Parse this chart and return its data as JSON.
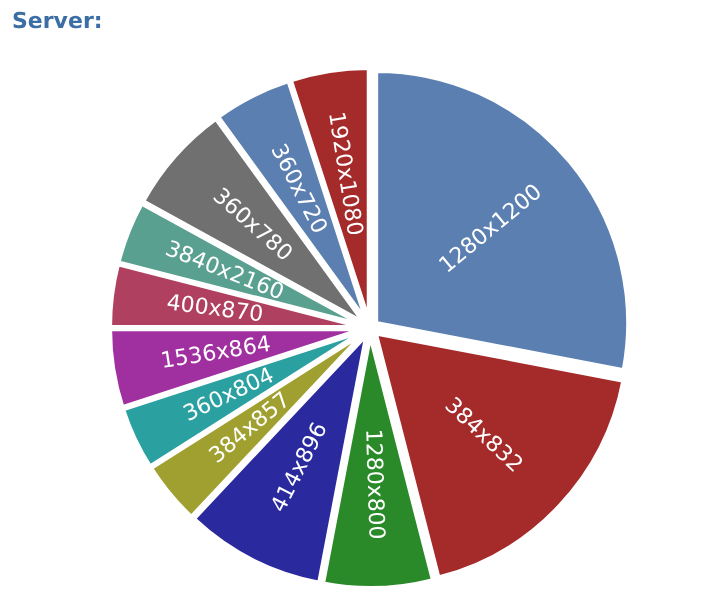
{
  "chart_data": {
    "type": "pie",
    "title": "Server:",
    "categories": [
      "1280x1200",
      "384x832",
      "1280x800",
      "414x896",
      "384x857",
      "360x804",
      "1536x864",
      "400x870",
      "3840x2160",
      "360x780",
      "360x720",
      "1920x1080"
    ],
    "values": [
      28,
      18,
      7,
      9,
      4,
      4,
      5,
      4,
      4,
      7,
      5,
      5
    ],
    "colors": [
      "#5b7fb0",
      "#a52a2a",
      "#2a8a2a",
      "#2a2a9e",
      "#a0a030",
      "#2aa0a0",
      "#a030a0",
      "#b04060",
      "#5aa090",
      "#707070",
      "#5b7fb0",
      "#a52a2a"
    ],
    "legend": false
  }
}
